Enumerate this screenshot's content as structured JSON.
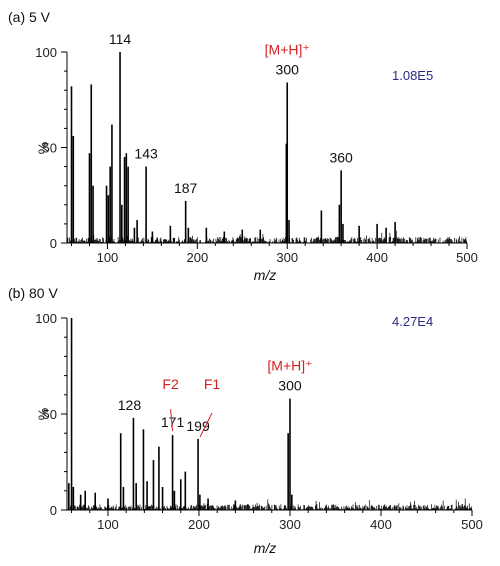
{
  "chart_data": [
    {
      "type": "bar",
      "panel_label": "(a) 5 V",
      "intensity": "1.08E5",
      "xlabel": "m/z",
      "ylabel": "%",
      "xlim": [
        55,
        500
      ],
      "ylim": [
        0,
        100
      ],
      "x_ticks": [
        100,
        200,
        300,
        400,
        500
      ],
      "y_ticks": [
        0,
        50,
        100
      ],
      "grid": false,
      "colors": {
        "peaks": "#000000",
        "annotation": "#d42020",
        "intensity": "#2a2a86"
      },
      "peaks": [
        {
          "mz": 60,
          "rel": 82
        },
        {
          "mz": 62,
          "rel": 56
        },
        {
          "mz": 80,
          "rel": 47
        },
        {
          "mz": 82,
          "rel": 83
        },
        {
          "mz": 84,
          "rel": 30
        },
        {
          "mz": 99,
          "rel": 30
        },
        {
          "mz": 101,
          "rel": 25
        },
        {
          "mz": 103,
          "rel": 40
        },
        {
          "mz": 105,
          "rel": 62
        },
        {
          "mz": 114,
          "rel": 100
        },
        {
          "mz": 116,
          "rel": 20
        },
        {
          "mz": 119,
          "rel": 45
        },
        {
          "mz": 121,
          "rel": 47
        },
        {
          "mz": 123,
          "rel": 40
        },
        {
          "mz": 130,
          "rel": 8
        },
        {
          "mz": 133,
          "rel": 12
        },
        {
          "mz": 143,
          "rel": 40
        },
        {
          "mz": 150,
          "rel": 6
        },
        {
          "mz": 170,
          "rel": 9
        },
        {
          "mz": 187,
          "rel": 22
        },
        {
          "mz": 190,
          "rel": 8
        },
        {
          "mz": 210,
          "rel": 8
        },
        {
          "mz": 230,
          "rel": 6
        },
        {
          "mz": 250,
          "rel": 7
        },
        {
          "mz": 270,
          "rel": 7
        },
        {
          "mz": 299,
          "rel": 52
        },
        {
          "mz": 300,
          "rel": 84
        },
        {
          "mz": 302,
          "rel": 12
        },
        {
          "mz": 338,
          "rel": 17
        },
        {
          "mz": 358,
          "rel": 20
        },
        {
          "mz": 360,
          "rel": 38
        },
        {
          "mz": 362,
          "rel": 10
        },
        {
          "mz": 380,
          "rel": 9
        },
        {
          "mz": 400,
          "rel": 10
        },
        {
          "mz": 410,
          "rel": 8
        },
        {
          "mz": 420,
          "rel": 11
        }
      ],
      "peak_labels": [
        {
          "mz": 114,
          "rel": 100,
          "text": "114"
        },
        {
          "mz": 143,
          "rel": 40,
          "text": "143"
        },
        {
          "mz": 187,
          "rel": 22,
          "text": "187"
        },
        {
          "mz": 300,
          "rel": 84,
          "text": "300"
        },
        {
          "mz": 360,
          "rel": 38,
          "text": "360"
        }
      ],
      "annotations": [
        {
          "mz": 300,
          "rel": 84,
          "text": "[M+H]⁺"
        }
      ]
    },
    {
      "type": "bar",
      "panel_label": "(b) 80 V",
      "intensity": "4.27E4",
      "xlabel": "m/z",
      "ylabel": "%",
      "xlim": [
        55,
        500
      ],
      "ylim": [
        0,
        100
      ],
      "x_ticks": [
        100,
        200,
        300,
        400,
        500
      ],
      "y_ticks": [
        0,
        50,
        100
      ],
      "grid": false,
      "colors": {
        "peaks": "#000000",
        "annotation": "#d42020",
        "intensity": "#2a2a86"
      },
      "peaks": [
        {
          "mz": 57,
          "rel": 14
        },
        {
          "mz": 60,
          "rel": 100
        },
        {
          "mz": 62,
          "rel": 12
        },
        {
          "mz": 70,
          "rel": 8
        },
        {
          "mz": 75,
          "rel": 10
        },
        {
          "mz": 86,
          "rel": 9
        },
        {
          "mz": 100,
          "rel": 6
        },
        {
          "mz": 114,
          "rel": 40
        },
        {
          "mz": 117,
          "rel": 12
        },
        {
          "mz": 128,
          "rel": 48
        },
        {
          "mz": 131,
          "rel": 14
        },
        {
          "mz": 139,
          "rel": 42
        },
        {
          "mz": 143,
          "rel": 15
        },
        {
          "mz": 150,
          "rel": 26
        },
        {
          "mz": 156,
          "rel": 33
        },
        {
          "mz": 160,
          "rel": 12
        },
        {
          "mz": 171,
          "rel": 39
        },
        {
          "mz": 173,
          "rel": 10
        },
        {
          "mz": 180,
          "rel": 16
        },
        {
          "mz": 185,
          "rel": 20
        },
        {
          "mz": 199,
          "rel": 37
        },
        {
          "mz": 201,
          "rel": 8
        },
        {
          "mz": 210,
          "rel": 6
        },
        {
          "mz": 240,
          "rel": 5
        },
        {
          "mz": 298,
          "rel": 40
        },
        {
          "mz": 300,
          "rel": 58
        },
        {
          "mz": 302,
          "rel": 8
        }
      ],
      "peak_labels": [
        {
          "mz": 128,
          "rel": 48,
          "text": "128"
        },
        {
          "mz": 171,
          "rel": 39,
          "text": "171"
        },
        {
          "mz": 199,
          "rel": 37,
          "text": "199"
        },
        {
          "mz": 300,
          "rel": 58,
          "text": "300"
        }
      ],
      "annotations": [
        {
          "mz": 171,
          "rel": 39,
          "text": "F2"
        },
        {
          "mz": 199,
          "rel": 37,
          "text": "F1"
        },
        {
          "mz": 300,
          "rel": 58,
          "text": "[M+H]⁺"
        }
      ]
    }
  ]
}
